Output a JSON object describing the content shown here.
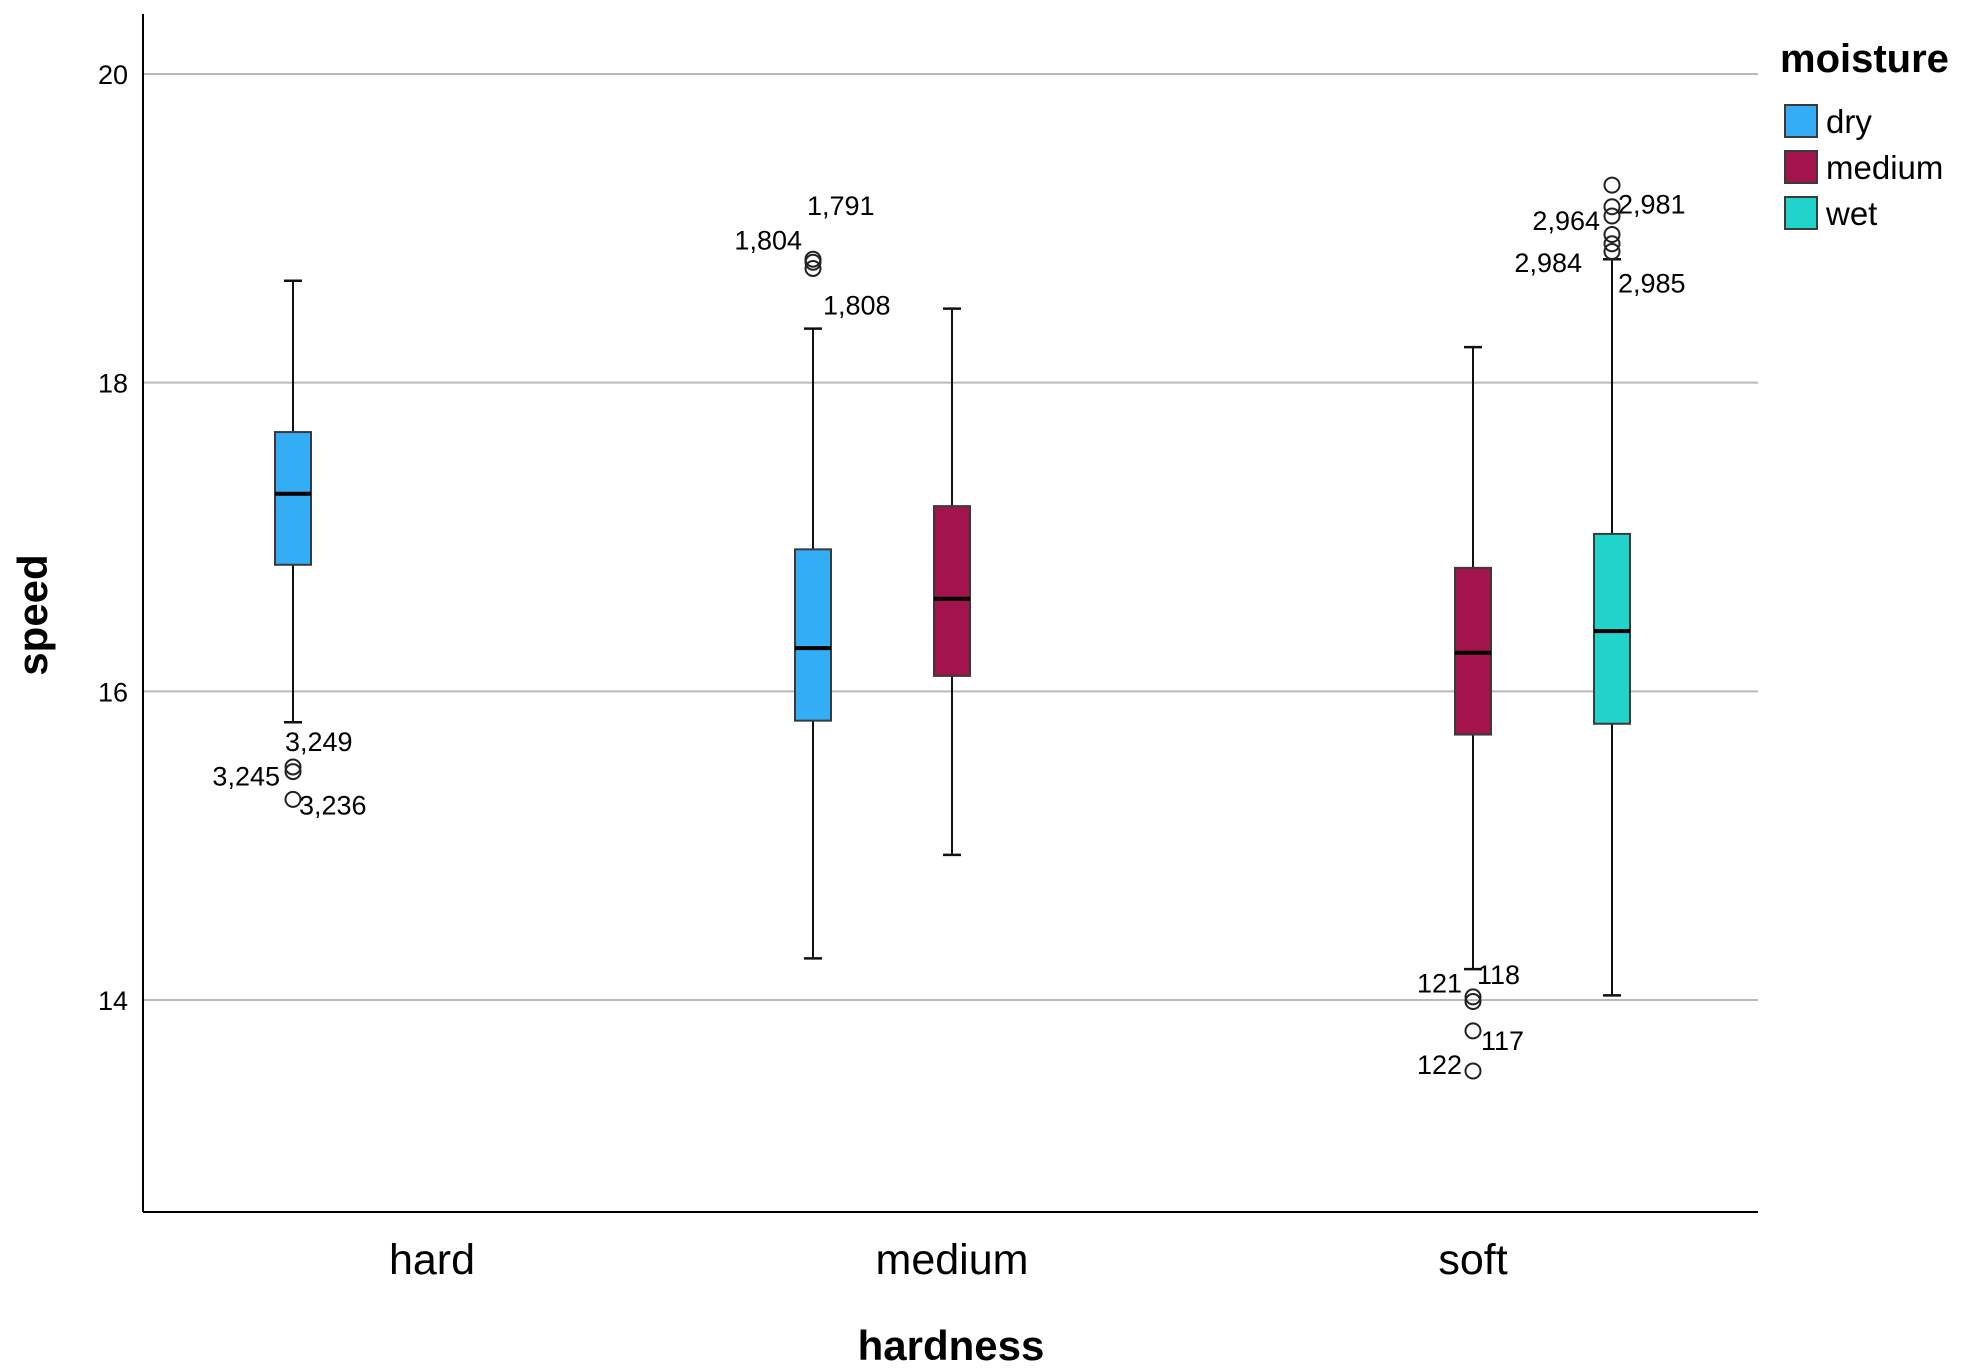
{
  "chart_data": {
    "type": "boxplot",
    "xlabel": "hardness",
    "ylabel": "speed",
    "ylim": [
      12.7,
      20.4
    ],
    "yticks": [
      14,
      16,
      18,
      20
    ],
    "grid": "horizontal",
    "legend": {
      "title": "moisture",
      "placement": "right",
      "entries": [
        {
          "name": "dry",
          "color": "#33adf5"
        },
        {
          "name": "medium",
          "color": "#a3144c"
        },
        {
          "name": "wet",
          "color": "#20d4cc"
        }
      ]
    },
    "categories": [
      "hard",
      "medium",
      "soft"
    ],
    "boxes": [
      {
        "category": "hard",
        "series": "dry",
        "whisker_low": 15.8,
        "q1": 16.82,
        "median": 17.28,
        "q3": 17.68,
        "whisker_high": 18.66,
        "outliers": [
          {
            "value": 15.51,
            "label": "3,249"
          },
          {
            "value": 15.48,
            "label": "3,245"
          },
          {
            "value": 15.3,
            "label": "3,236"
          }
        ]
      },
      {
        "category": "medium",
        "series": "dry",
        "whisker_low": 14.27,
        "q1": 15.81,
        "median": 16.28,
        "q3": 16.92,
        "whisker_high": 18.35,
        "outliers": [
          {
            "value": 18.8,
            "label": "1,791"
          },
          {
            "value": 18.78,
            "label": "1,804"
          },
          {
            "value": 18.74,
            "label": "1,808"
          }
        ]
      },
      {
        "category": "medium",
        "series": "medium",
        "whisker_low": 14.94,
        "q1": 16.1,
        "median": 16.6,
        "q3": 17.2,
        "whisker_high": 18.48
      },
      {
        "category": "soft",
        "series": "medium",
        "whisker_low": 14.2,
        "q1": 15.72,
        "median": 16.25,
        "q3": 16.8,
        "whisker_high": 18.23,
        "outliers": [
          {
            "value": 14.02,
            "label": "118"
          },
          {
            "value": 13.99,
            "label": "121"
          },
          {
            "value": 13.8,
            "label": "117"
          },
          {
            "value": 13.54,
            "label": "122"
          }
        ]
      },
      {
        "category": "soft",
        "series": "wet",
        "whisker_low": 14.03,
        "q1": 15.79,
        "median": 16.39,
        "q3": 17.02,
        "whisker_high": 18.8,
        "outliers": [
          {
            "value": 19.28,
            "label": ""
          },
          {
            "value": 19.14,
            "label": "2,981"
          },
          {
            "value": 19.08,
            "label": "2,964"
          },
          {
            "value": 18.96,
            "label": ""
          },
          {
            "value": 18.9,
            "label": "2,984"
          },
          {
            "value": 18.85,
            "label": "2,985"
          }
        ]
      }
    ]
  }
}
